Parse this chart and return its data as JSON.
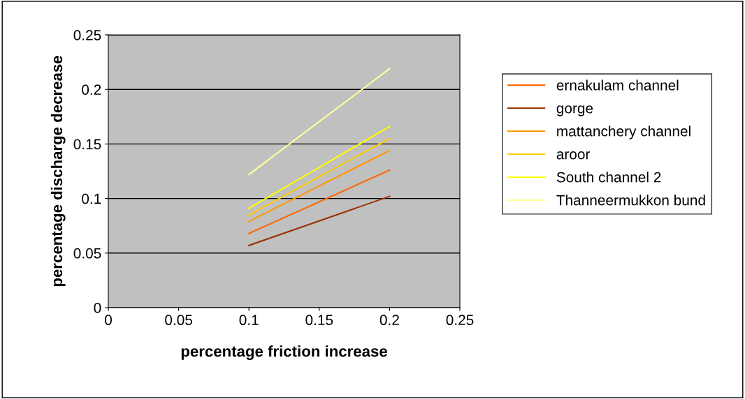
{
  "chart_data": {
    "type": "line",
    "xlabel": "percentage friction increase",
    "ylabel": "percentage discharge decrease",
    "x": [
      0.1,
      0.2
    ],
    "series": [
      {
        "name": "ernakulam channel",
        "color": "#ff6600",
        "values": [
          0.068,
          0.126
        ]
      },
      {
        "name": "gorge",
        "color": "#993300",
        "values": [
          0.057,
          0.102
        ]
      },
      {
        "name": "mattanchery channel",
        "color": "#ff9900",
        "values": [
          0.079,
          0.144
        ]
      },
      {
        "name": "aroor",
        "color": "#ffcc00",
        "values": [
          0.085,
          0.155
        ]
      },
      {
        "name": "South channel 2",
        "color": "#ffff00",
        "values": [
          0.091,
          0.166
        ]
      },
      {
        "name": "Thanneermukkon bund",
        "color": "#ffff99",
        "values": [
          0.122,
          0.219
        ]
      }
    ],
    "xlim": [
      0,
      0.25
    ],
    "xticks": [
      0,
      0.05,
      0.1,
      0.15,
      0.2,
      0.25
    ],
    "ylim": [
      0,
      0.25
    ],
    "yticks": [
      0,
      0.05,
      0.1,
      0.15,
      0.2,
      0.25
    ],
    "grid": "y",
    "legend": "right",
    "marker": "none",
    "line_style": "solid"
  }
}
